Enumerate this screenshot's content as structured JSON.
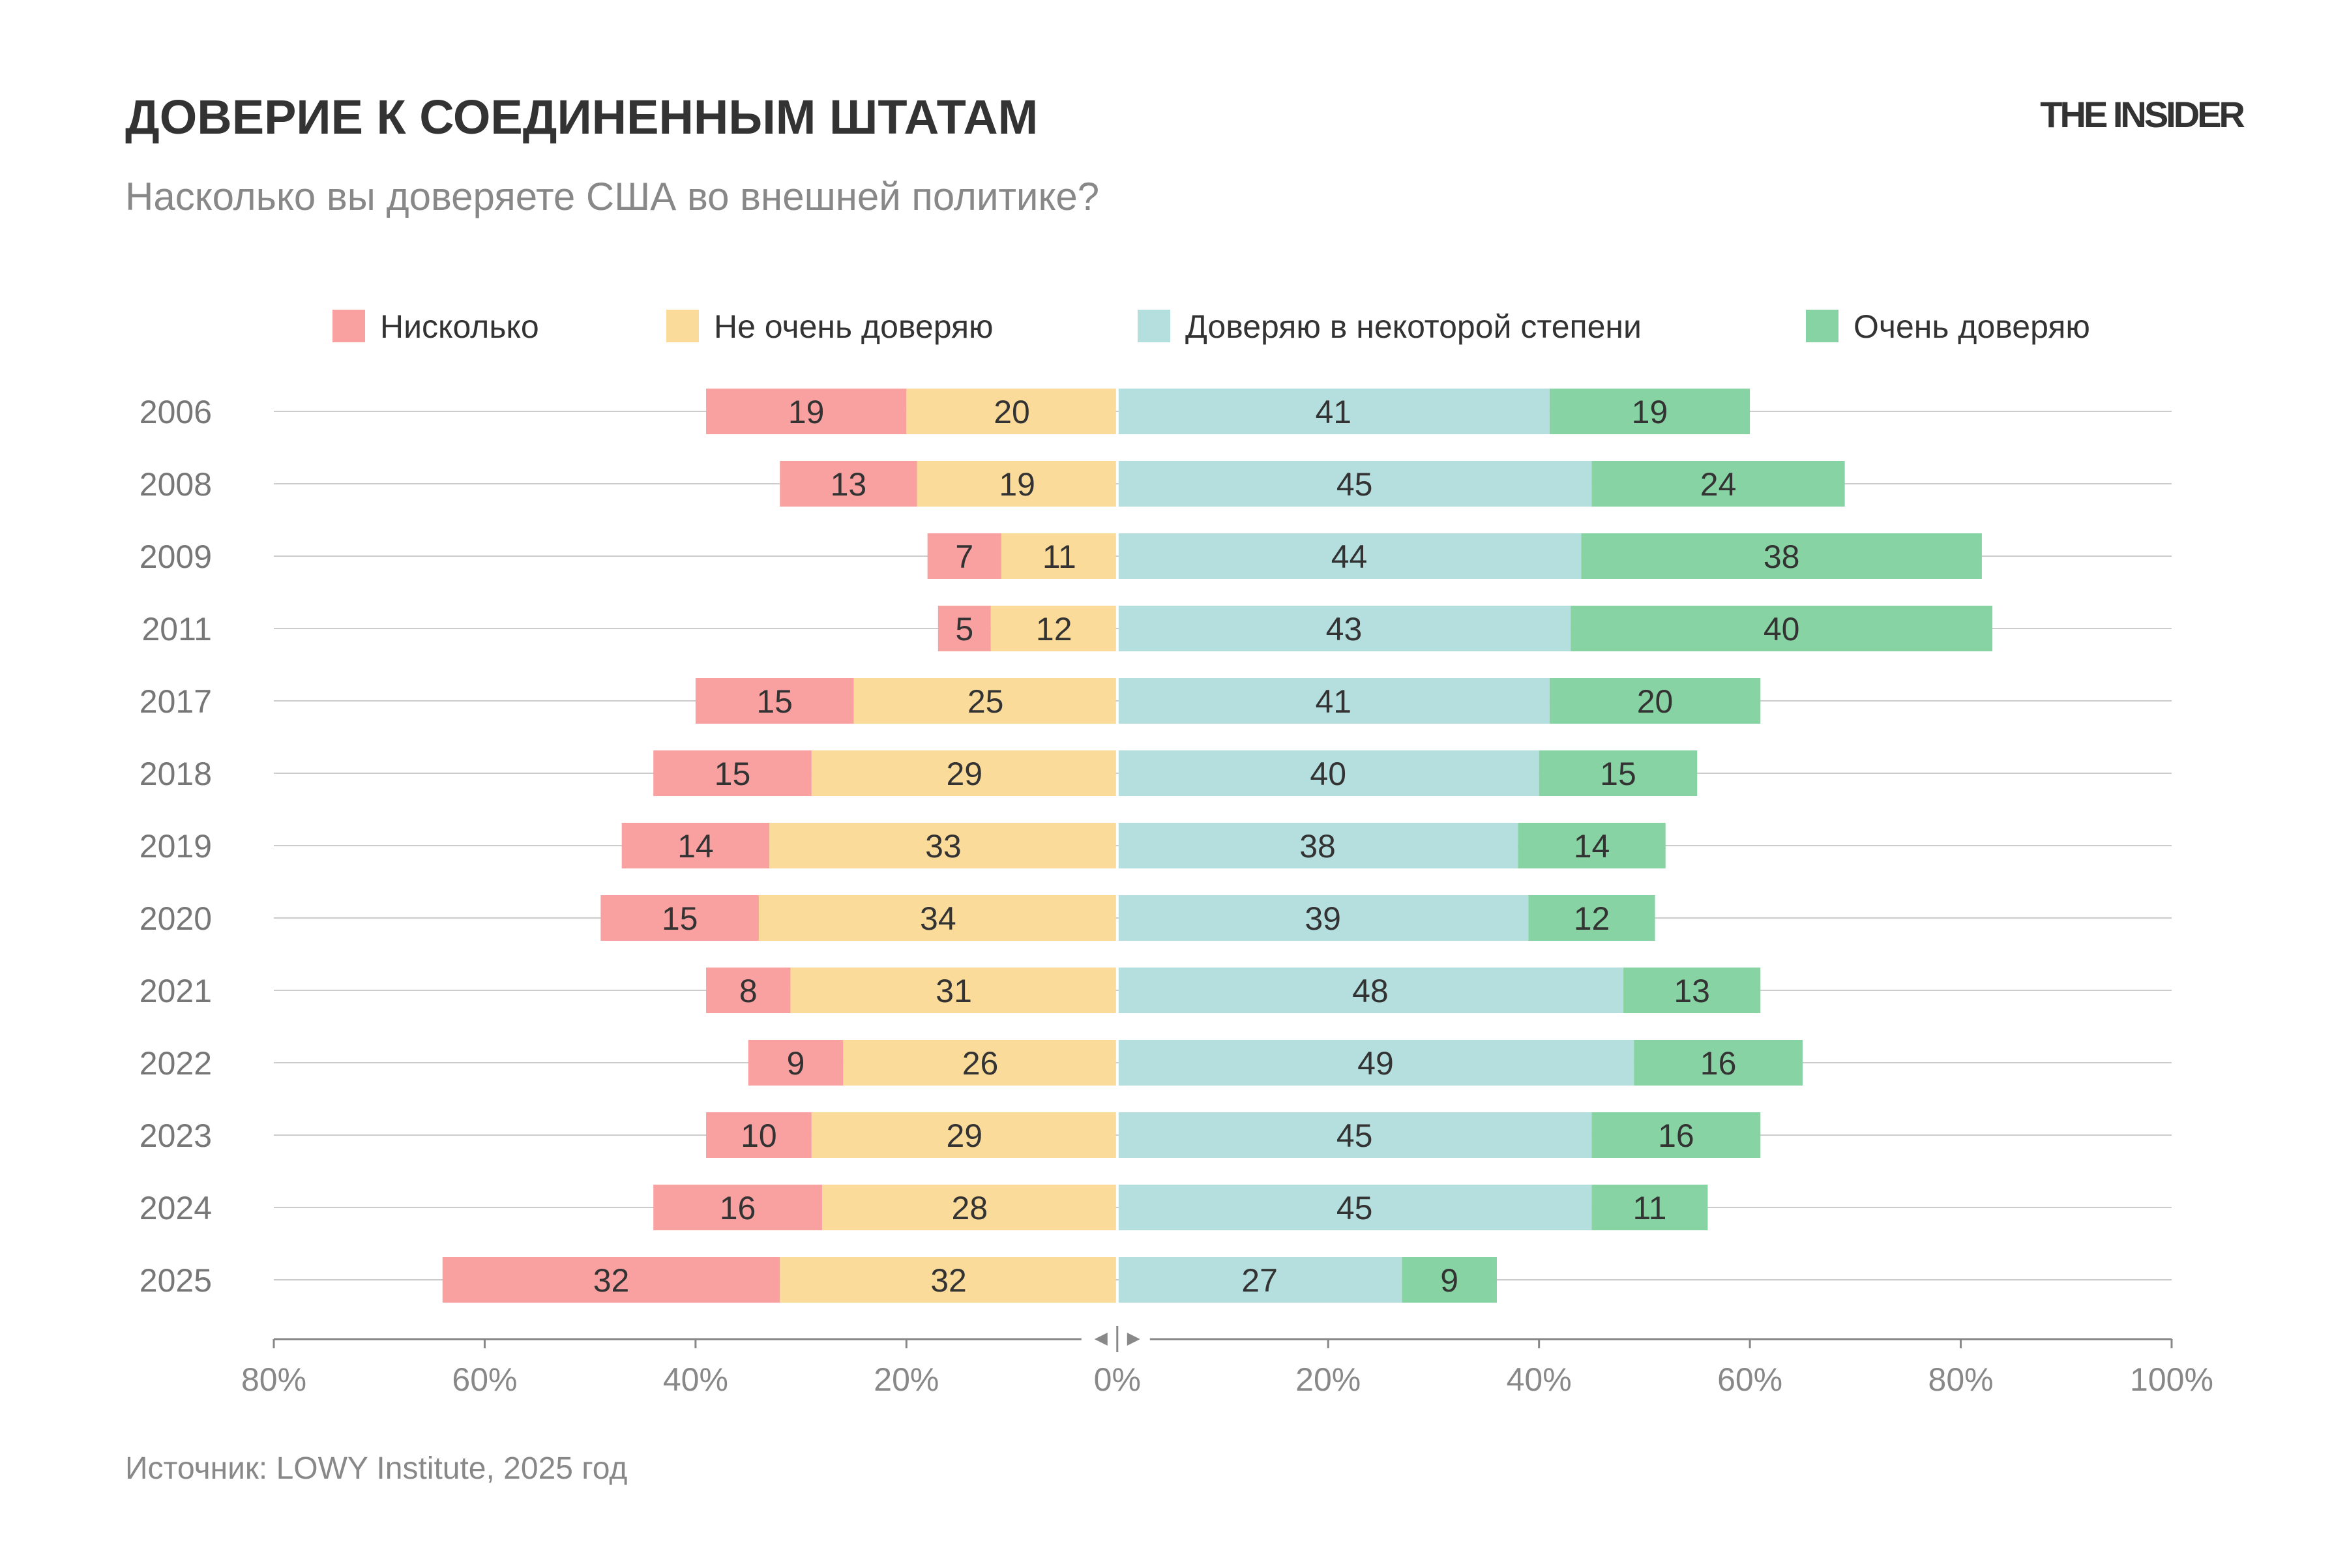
{
  "title": "ДОВЕРИЕ К СОЕДИНЕННЫМ ШТАТАМ",
  "subtitle": "Насколько вы доверяете США во внешней политике?",
  "logo": "THE INSIDER",
  "source": "Источник: LOWY Institute, 2025 год",
  "chart_data": {
    "type": "bar",
    "orientation": "horizontal",
    "stacked": "diverging",
    "categories": [
      "2006",
      "2008",
      "2009",
      "2011",
      "2017",
      "2018",
      "2019",
      "2020",
      "2021",
      "2022",
      "2023",
      "2024",
      "2025"
    ],
    "series": [
      {
        "name": "Нисколько",
        "side": "negative",
        "color": "#F9A0A0",
        "values": [
          19,
          13,
          7,
          5,
          15,
          15,
          14,
          15,
          8,
          9,
          10,
          16,
          32
        ]
      },
      {
        "name": "Не очень доверяю",
        "side": "negative",
        "color": "#FADB9A",
        "values": [
          20,
          19,
          11,
          12,
          25,
          29,
          33,
          34,
          31,
          26,
          29,
          28,
          32
        ]
      },
      {
        "name": "Доверяю в некоторой степени",
        "side": "positive",
        "color": "#B5DFDF",
        "values": [
          41,
          45,
          44,
          43,
          41,
          40,
          38,
          39,
          48,
          49,
          45,
          45,
          27
        ]
      },
      {
        "name": "Очень доверяю",
        "side": "positive",
        "color": "#88D3A3",
        "values": [
          19,
          24,
          38,
          40,
          20,
          15,
          14,
          12,
          13,
          16,
          16,
          11,
          9
        ]
      }
    ],
    "xlim": [
      -80,
      100
    ],
    "x_ticks": [
      "80%",
      "60%",
      "40%",
      "20%",
      "0%",
      "20%",
      "40%",
      "60%",
      "80%",
      "100%"
    ],
    "x_tick_values": [
      -80,
      -60,
      -40,
      -20,
      0,
      20,
      40,
      60,
      80,
      100
    ],
    "grid": true,
    "legend": "top"
  }
}
